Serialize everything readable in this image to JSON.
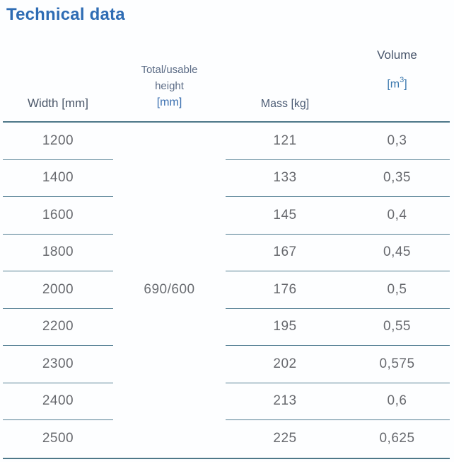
{
  "title": "Technical data",
  "colors": {
    "title_blue": "#2e6cb4",
    "header_dark": "#4b5769",
    "header_slate": "#5c6c86",
    "unit_blue": "#3a6fb0",
    "line_steel_blue": "#527e92",
    "data_text_gray": "#67696e",
    "background": "#fdfeff"
  },
  "table": {
    "headers": {
      "width": "Width [mm]",
      "height_line1": "Total/usable",
      "height_line2": "height",
      "height_unit": "[mm]",
      "mass": "Mass [kg]",
      "volume": "Volume",
      "volume_unit_open": "[m",
      "volume_unit_sup": "3",
      "volume_unit_close": "]"
    },
    "merged_height_value": "690/600",
    "rows": [
      {
        "width": "1200",
        "mass": "121",
        "volume": "0,3"
      },
      {
        "width": "1400",
        "mass": "133",
        "volume": "0,35"
      },
      {
        "width": "1600",
        "mass": "145",
        "volume": "0,4"
      },
      {
        "width": "1800",
        "mass": "167",
        "volume": "0,45"
      },
      {
        "width": "2000",
        "mass": "176",
        "volume": "0,5"
      },
      {
        "width": "2200",
        "mass": "195",
        "volume": "0,55"
      },
      {
        "width": "2300",
        "mass": "202",
        "volume": "0,575"
      },
      {
        "width": "2400",
        "mass": "213",
        "volume": "0,6"
      },
      {
        "width": "2500",
        "mass": "225",
        "volume": "0,625"
      }
    ]
  },
  "chart_data": {
    "type": "table",
    "title": "Technical data",
    "columns": [
      "Width [mm]",
      "Total/usable height [mm]",
      "Mass [kg]",
      "Volume [m3]"
    ],
    "rows": [
      [
        "1200",
        "690/600",
        "121",
        "0,3"
      ],
      [
        "1400",
        "690/600",
        "133",
        "0,35"
      ],
      [
        "1600",
        "690/600",
        "145",
        "0,4"
      ],
      [
        "1800",
        "690/600",
        "167",
        "0,45"
      ],
      [
        "2000",
        "690/600",
        "176",
        "0,5"
      ],
      [
        "2200",
        "690/600",
        "195",
        "0,55"
      ],
      [
        "2300",
        "690/600",
        "202",
        "0,575"
      ],
      [
        "2400",
        "690/600",
        "213",
        "0,6"
      ],
      [
        "2500",
        "690/600",
        "225",
        "0,625"
      ]
    ]
  }
}
